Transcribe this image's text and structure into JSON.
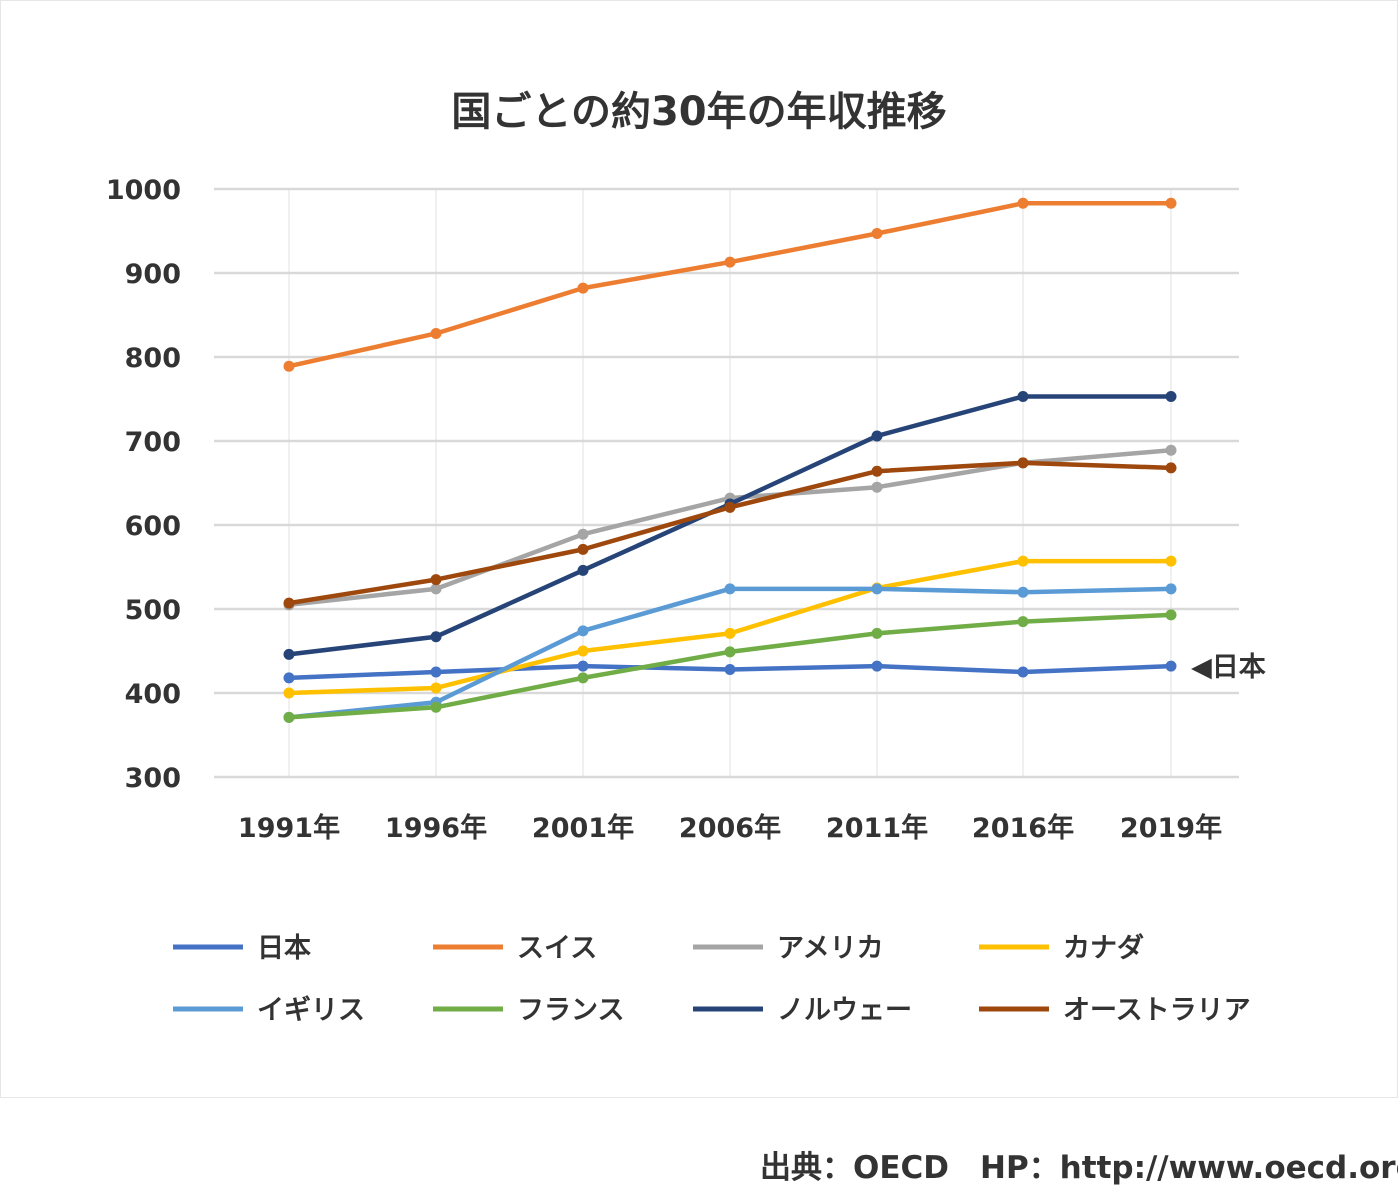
{
  "chart_data": {
    "type": "line",
    "title": "国ごとの約30年の年収推移",
    "categories": [
      "1991年",
      "1996年",
      "2001年",
      "2006年",
      "2011年",
      "2016年",
      "2019年"
    ],
    "ylim": [
      300,
      1000
    ],
    "yticks": [
      300,
      400,
      500,
      600,
      700,
      800,
      900,
      1000
    ],
    "xlabel": "",
    "ylabel": "",
    "grid": true,
    "legend_position": "bottom",
    "series": [
      {
        "name": "日本",
        "color": "#4472c4",
        "values": [
          418,
          425,
          432,
          428,
          432,
          425,
          432
        ]
      },
      {
        "name": "スイス",
        "color": "#ed7d31",
        "values": [
          789,
          828,
          882,
          913,
          947,
          983,
          983
        ]
      },
      {
        "name": "アメリカ",
        "color": "#a5a5a5",
        "values": [
          505,
          524,
          589,
          632,
          645,
          674,
          689
        ]
      },
      {
        "name": "カナダ",
        "color": "#ffc000",
        "values": [
          400,
          406,
          450,
          471,
          525,
          557,
          557
        ]
      },
      {
        "name": "イギリス",
        "color": "#5b9bd5",
        "values": [
          371,
          389,
          474,
          524,
          524,
          520,
          524
        ]
      },
      {
        "name": "フランス",
        "color": "#70ad47",
        "values": [
          371,
          383,
          418,
          449,
          471,
          485,
          493
        ]
      },
      {
        "name": "ノルウェー",
        "color": "#264478",
        "values": [
          446,
          467,
          546,
          625,
          706,
          753,
          753
        ]
      },
      {
        "name": "オーストラリア",
        "color": "#9e480e",
        "values": [
          507,
          535,
          571,
          621,
          664,
          674,
          668
        ]
      }
    ],
    "annotation": {
      "text": "◀日本"
    }
  },
  "source": "出典：OECD　HP：http://www.oecd.org"
}
